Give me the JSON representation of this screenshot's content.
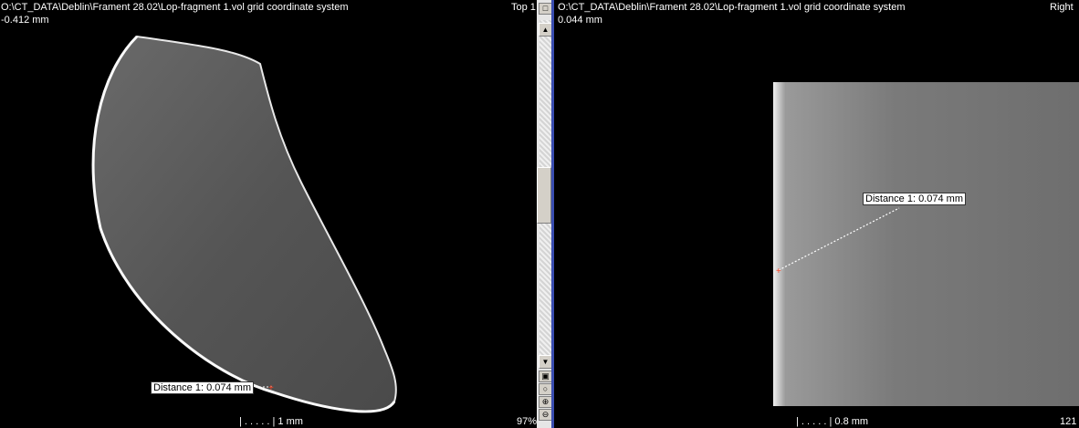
{
  "left_view": {
    "path": "O:\\CT_DATA\\Deblin\\Frament 28.02\\Lop-fragment 1.vol grid coordinate system",
    "position": "-0.412 mm",
    "orientation": "Top 1",
    "measurement": "Distance 1: 0.074 mm",
    "scale_label": "1 mm",
    "zoom": "97%"
  },
  "right_view": {
    "path": "O:\\CT_DATA\\Deblin\\Frament 28.02\\Lop-fragment 1.vol grid coordinate system",
    "position": "0.044 mm",
    "orientation": "Right",
    "measurement": "Distance 1: 0.074 mm",
    "scale_label": "0.8 mm",
    "zoom": "121"
  },
  "scrollbar": {
    "up_arrow": "▲",
    "down_arrow": "▼"
  },
  "colors": {
    "divider": "#3a4db0",
    "measurement_line": "#ffffff",
    "measurement_marker": "#ff4020"
  }
}
